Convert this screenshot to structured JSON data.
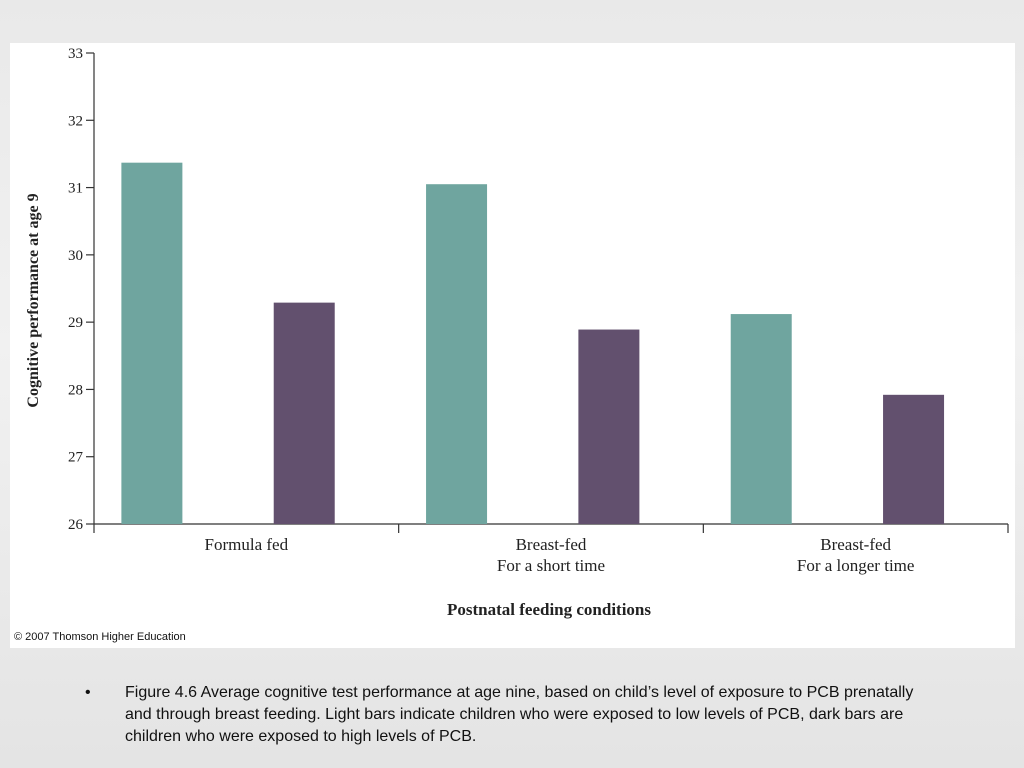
{
  "chart_data": {
    "type": "bar",
    "categories": [
      [
        "Formula fed"
      ],
      [
        "Breast-fed",
        "For a short time"
      ],
      [
        "Breast-fed",
        "For a longer time"
      ]
    ],
    "series": [
      {
        "level": "low",
        "color": "#6fa59f",
        "values": [
          31.37,
          31.05,
          29.12
        ]
      },
      {
        "level": "high",
        "color": "#62506e",
        "values": [
          29.29,
          28.89,
          27.92
        ]
      }
    ],
    "ylim": [
      26,
      33
    ],
    "yticks": [
      26,
      27,
      28,
      29,
      30,
      31,
      32,
      33
    ],
    "ylabel": "Cognitive performance at age 9",
    "xlabel": "Postnatal feeding conditions",
    "grid": false,
    "legend": "none"
  },
  "copyright": "© 2007 Thomson Higher Education",
  "caption": {
    "bullet": "•",
    "text": "Figure 4.6 Average cognitive test performance at age nine, based on child’s level of exposure to PCB prenatally and through breast feeding. Light bars indicate children who were exposed to low levels of PCB, dark bars are children who were exposed to high levels of PCB."
  }
}
